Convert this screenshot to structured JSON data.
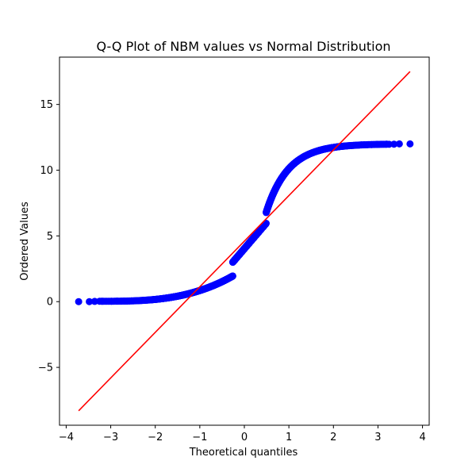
{
  "chart_data": {
    "type": "scatter",
    "title": "Q-Q Plot of NBM values vs Normal Distribution",
    "xlabel": "Theoretical quantiles",
    "ylabel": "Ordered Values",
    "xlim": [
      -4.15,
      4.15
    ],
    "ylim": [
      -9.4,
      18.6
    ],
    "xticks": [
      -4,
      -3,
      -2,
      -1,
      0,
      1,
      2,
      3,
      4
    ],
    "xtick_labels": [
      "−4",
      "−3",
      "−2",
      "−1",
      "0",
      "1",
      "2",
      "3",
      "4"
    ],
    "yticks": [
      -5,
      0,
      5,
      10,
      15
    ],
    "ytick_labels": [
      "−5",
      "0",
      "5",
      "10",
      "15"
    ],
    "grid": false,
    "colors": {
      "points": "#0000ff",
      "fit_line": "#ff0000"
    },
    "fit_line": {
      "x": [
        -3.72,
        3.72
      ],
      "y": [
        -8.3,
        17.5
      ]
    },
    "samples": {
      "lower_tail": [
        {
          "x": -3.72,
          "y": 0.0
        },
        {
          "x": -3.48,
          "y": 0.0
        },
        {
          "x": -3.36,
          "y": 0.02
        },
        {
          "x": -3.25,
          "y": 0.03
        }
      ],
      "upper_tail": [
        {
          "x": 3.72,
          "y": 12.0
        },
        {
          "x": 3.48,
          "y": 12.0
        },
        {
          "x": 3.36,
          "y": 11.98
        },
        {
          "x": 3.25,
          "y": 11.97
        }
      ],
      "dense_segments": [
        {
          "x_start": -3.2,
          "x_end": -0.26
        },
        {
          "x_start": -0.28,
          "x_end": 0.48
        },
        {
          "x_start": 0.5,
          "x_end": 3.2
        }
      ]
    }
  }
}
